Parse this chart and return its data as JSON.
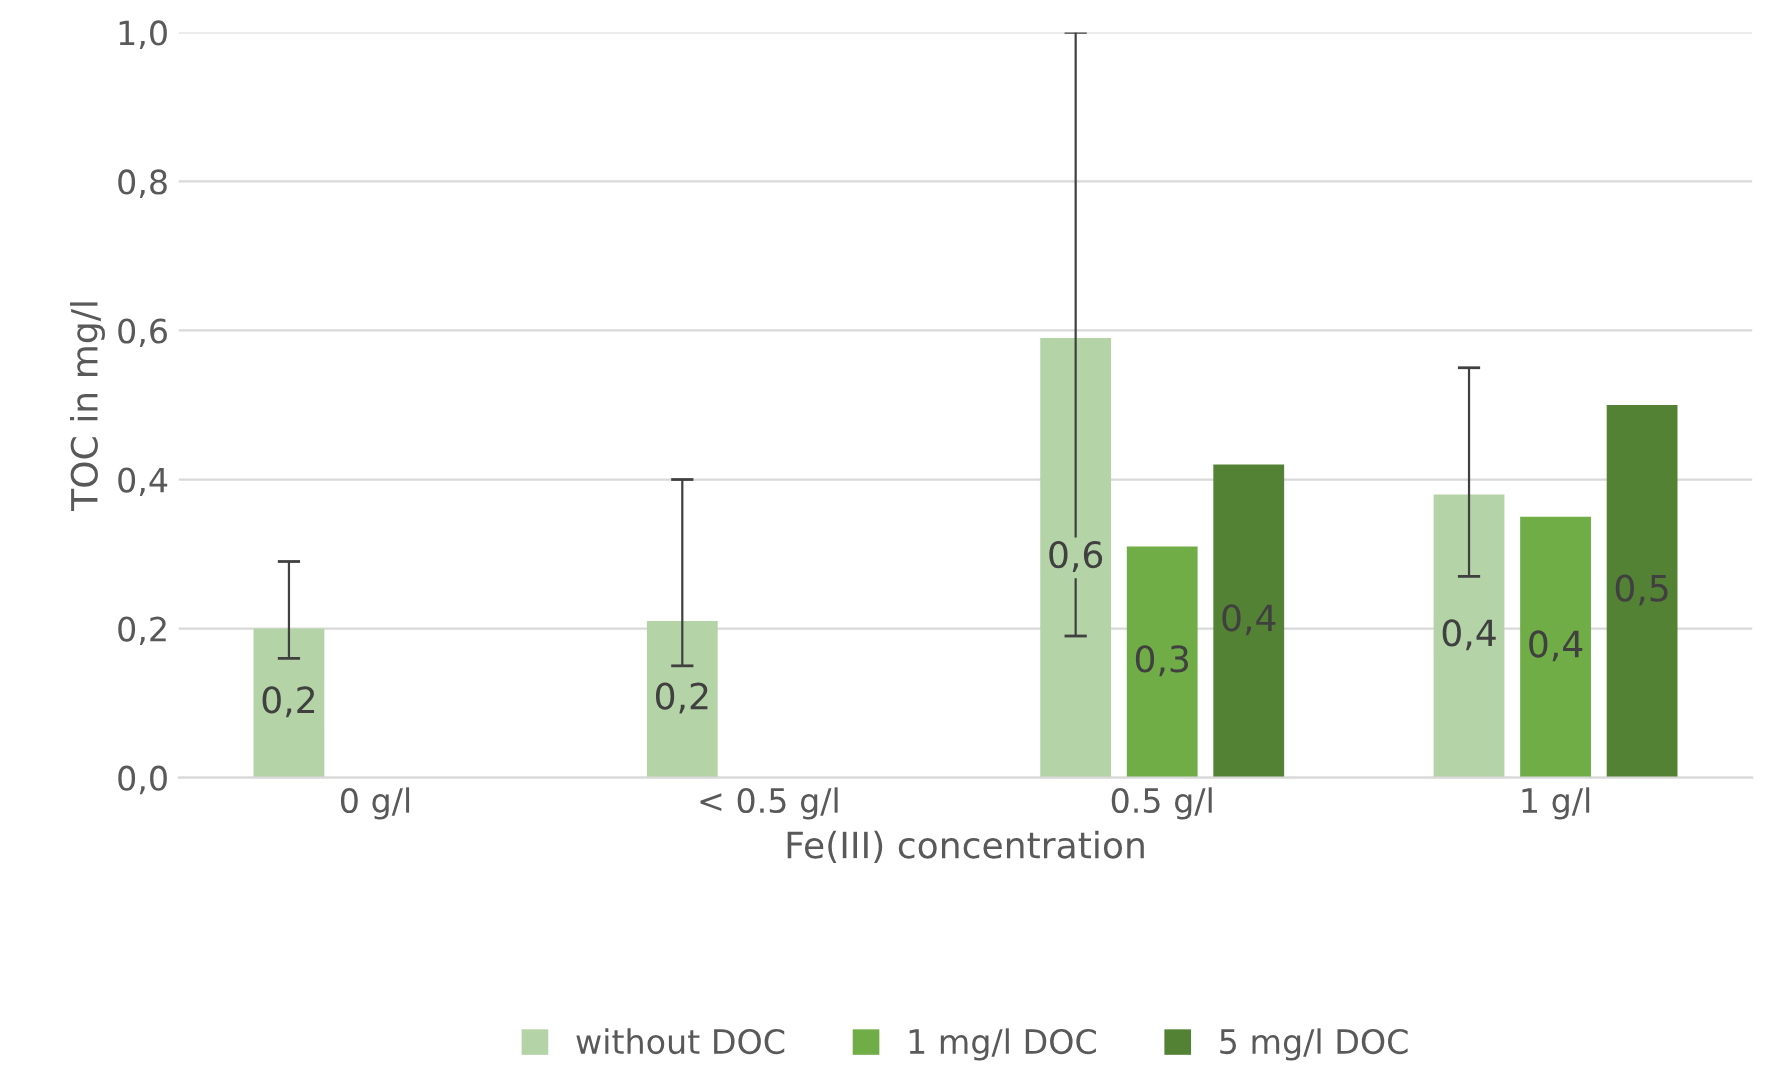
{
  "chart_data": {
    "type": "bar",
    "xlabel": "Fe(III) concentration",
    "ylabel": "TOC in mg/l",
    "categories": [
      "0 g/l",
      "< 0.5 g/l",
      "0.5 g/l",
      "1 g/l"
    ],
    "series": [
      {
        "name": "without DOC",
        "color": "#b4d3a6",
        "values": [
          0.2,
          0.21,
          0.59,
          0.38
        ],
        "errors": [
          [
            0.16,
            0.29
          ],
          [
            0.15,
            0.4
          ],
          [
            0.19,
            1.0
          ],
          [
            0.27,
            0.55
          ]
        ],
        "value_labels": [
          "0,2",
          "0,2",
          "0,6",
          "0,4"
        ]
      },
      {
        "name": "1 mg/l DOC",
        "color": "#70ad47",
        "values": [
          null,
          null,
          0.31,
          0.35
        ],
        "value_labels": [
          null,
          null,
          "0,3",
          "0,4"
        ]
      },
      {
        "name": "5 mg/l DOC",
        "color": "#548235",
        "values": [
          null,
          null,
          0.42,
          0.5
        ],
        "value_labels": [
          null,
          null,
          "0,4",
          "0,5"
        ]
      }
    ],
    "ylim": [
      0,
      1.0
    ],
    "yticks": [
      {
        "value": 0,
        "label": "0,0"
      },
      {
        "value": 0.2,
        "label": "0,2"
      },
      {
        "value": 0.4,
        "label": "0,4"
      },
      {
        "value": 0.6,
        "label": "0,6"
      },
      {
        "value": 0.8,
        "label": "0,8"
      },
      {
        "value": 1.0,
        "label": "1,0"
      }
    ],
    "grid": "y",
    "legend": "bottom"
  }
}
